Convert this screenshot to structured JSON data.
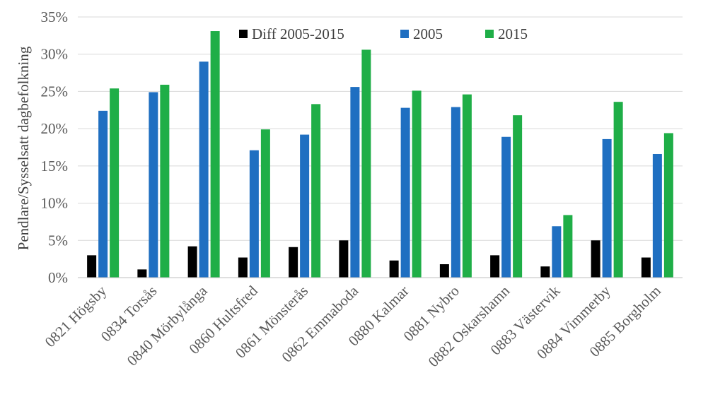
{
  "chart_data": {
    "type": "bar",
    "title": "",
    "xlabel": "",
    "ylabel": "Pendlare/Sysselsatt dagbefolkning",
    "ylim": [
      0,
      35
    ],
    "yticks": [
      "0%",
      "5%",
      "10%",
      "15%",
      "20%",
      "25%",
      "30%",
      "35%"
    ],
    "grid": true,
    "legend": "top",
    "categories": [
      "0821 Högsby",
      "0834 Torsås",
      "0840 Mörbylånga",
      "0860 Hultsfred",
      "0861 Mönsterås",
      "0862 Emmaboda",
      "0880 Kalmar",
      "0881 Nybro",
      "0882 Oskarshamn",
      "0883 Västervik",
      "0884 Vimmerby",
      "0885 Borgholm"
    ],
    "series": [
      {
        "name": "Diff 2005-2015",
        "color": "#000000",
        "values": [
          3.0,
          1.1,
          4.2,
          2.7,
          4.1,
          5.0,
          2.3,
          1.8,
          3.0,
          1.5,
          5.0,
          2.7
        ]
      },
      {
        "name": "2005",
        "color": "#1f6fc1",
        "values": [
          22.4,
          24.9,
          29.0,
          17.1,
          19.2,
          25.6,
          22.8,
          22.9,
          18.9,
          6.9,
          18.6,
          16.6
        ]
      },
      {
        "name": "2015",
        "color": "#1fae47",
        "values": [
          25.4,
          25.9,
          33.1,
          19.9,
          23.3,
          30.6,
          25.1,
          24.6,
          21.8,
          8.4,
          23.6,
          19.4
        ]
      }
    ]
  }
}
